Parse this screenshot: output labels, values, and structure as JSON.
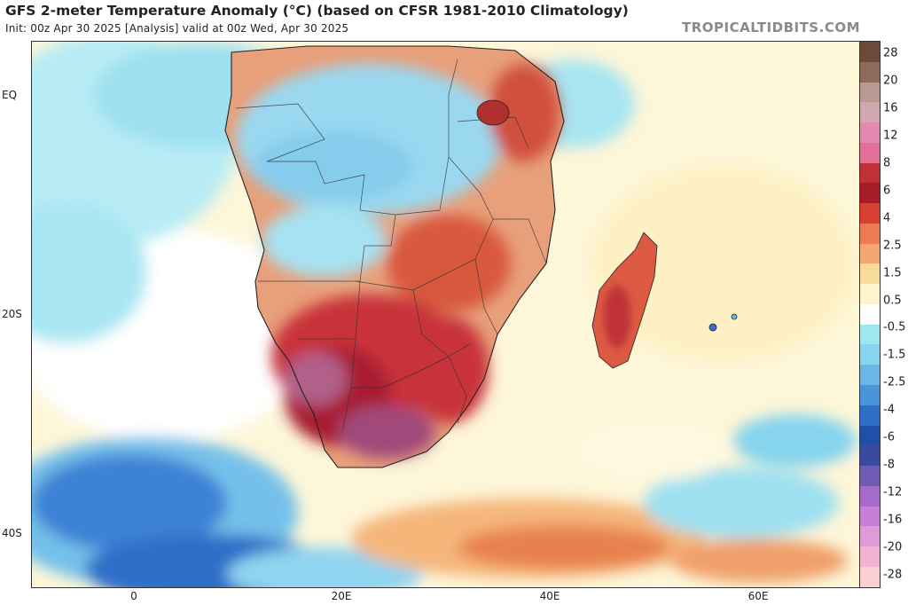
{
  "header": {
    "title": "GFS 2-meter Temperature Anomaly (°C) (based on CFSR 1981-2010 Climatology)",
    "subtitle": "Init: 00z Apr 30 2025   [Analysis]   valid at 00z Wed, Apr 30 2025",
    "brand": "TROPICALTIDBITS.COM"
  },
  "map": {
    "y_ticks": [
      "EQ",
      "20S",
      "40S"
    ],
    "x_ticks": [
      "0",
      "20E",
      "40E",
      "60E"
    ]
  },
  "colorbar": {
    "labels": [
      "28",
      "20",
      "16",
      "12",
      "8",
      "6",
      "4",
      "2.5",
      "1.5",
      "0.5",
      "-0.5",
      "-1.5",
      "-2.5",
      "-4",
      "-6",
      "-8",
      "-12",
      "-16",
      "-20",
      "-28"
    ],
    "colors": [
      "#6b4a3a",
      "#8c6a5c",
      "#b89a92",
      "#d2a8b0",
      "#e28ab0",
      "#e07098",
      "#c03038",
      "#a81c28",
      "#d83e32",
      "#ec7a52",
      "#f2a870",
      "#f8dc9a",
      "#fdf4cc",
      "#ffffff",
      "#9ce8ec",
      "#86d4ee",
      "#6cb6e6",
      "#4a94da",
      "#2f6ec8",
      "#1f4fa6",
      "#3a4aa0",
      "#6f5cb4",
      "#a46cc8",
      "#c880d6",
      "#e09ad8",
      "#f0b4d2",
      "#f8d0d4"
    ]
  }
}
